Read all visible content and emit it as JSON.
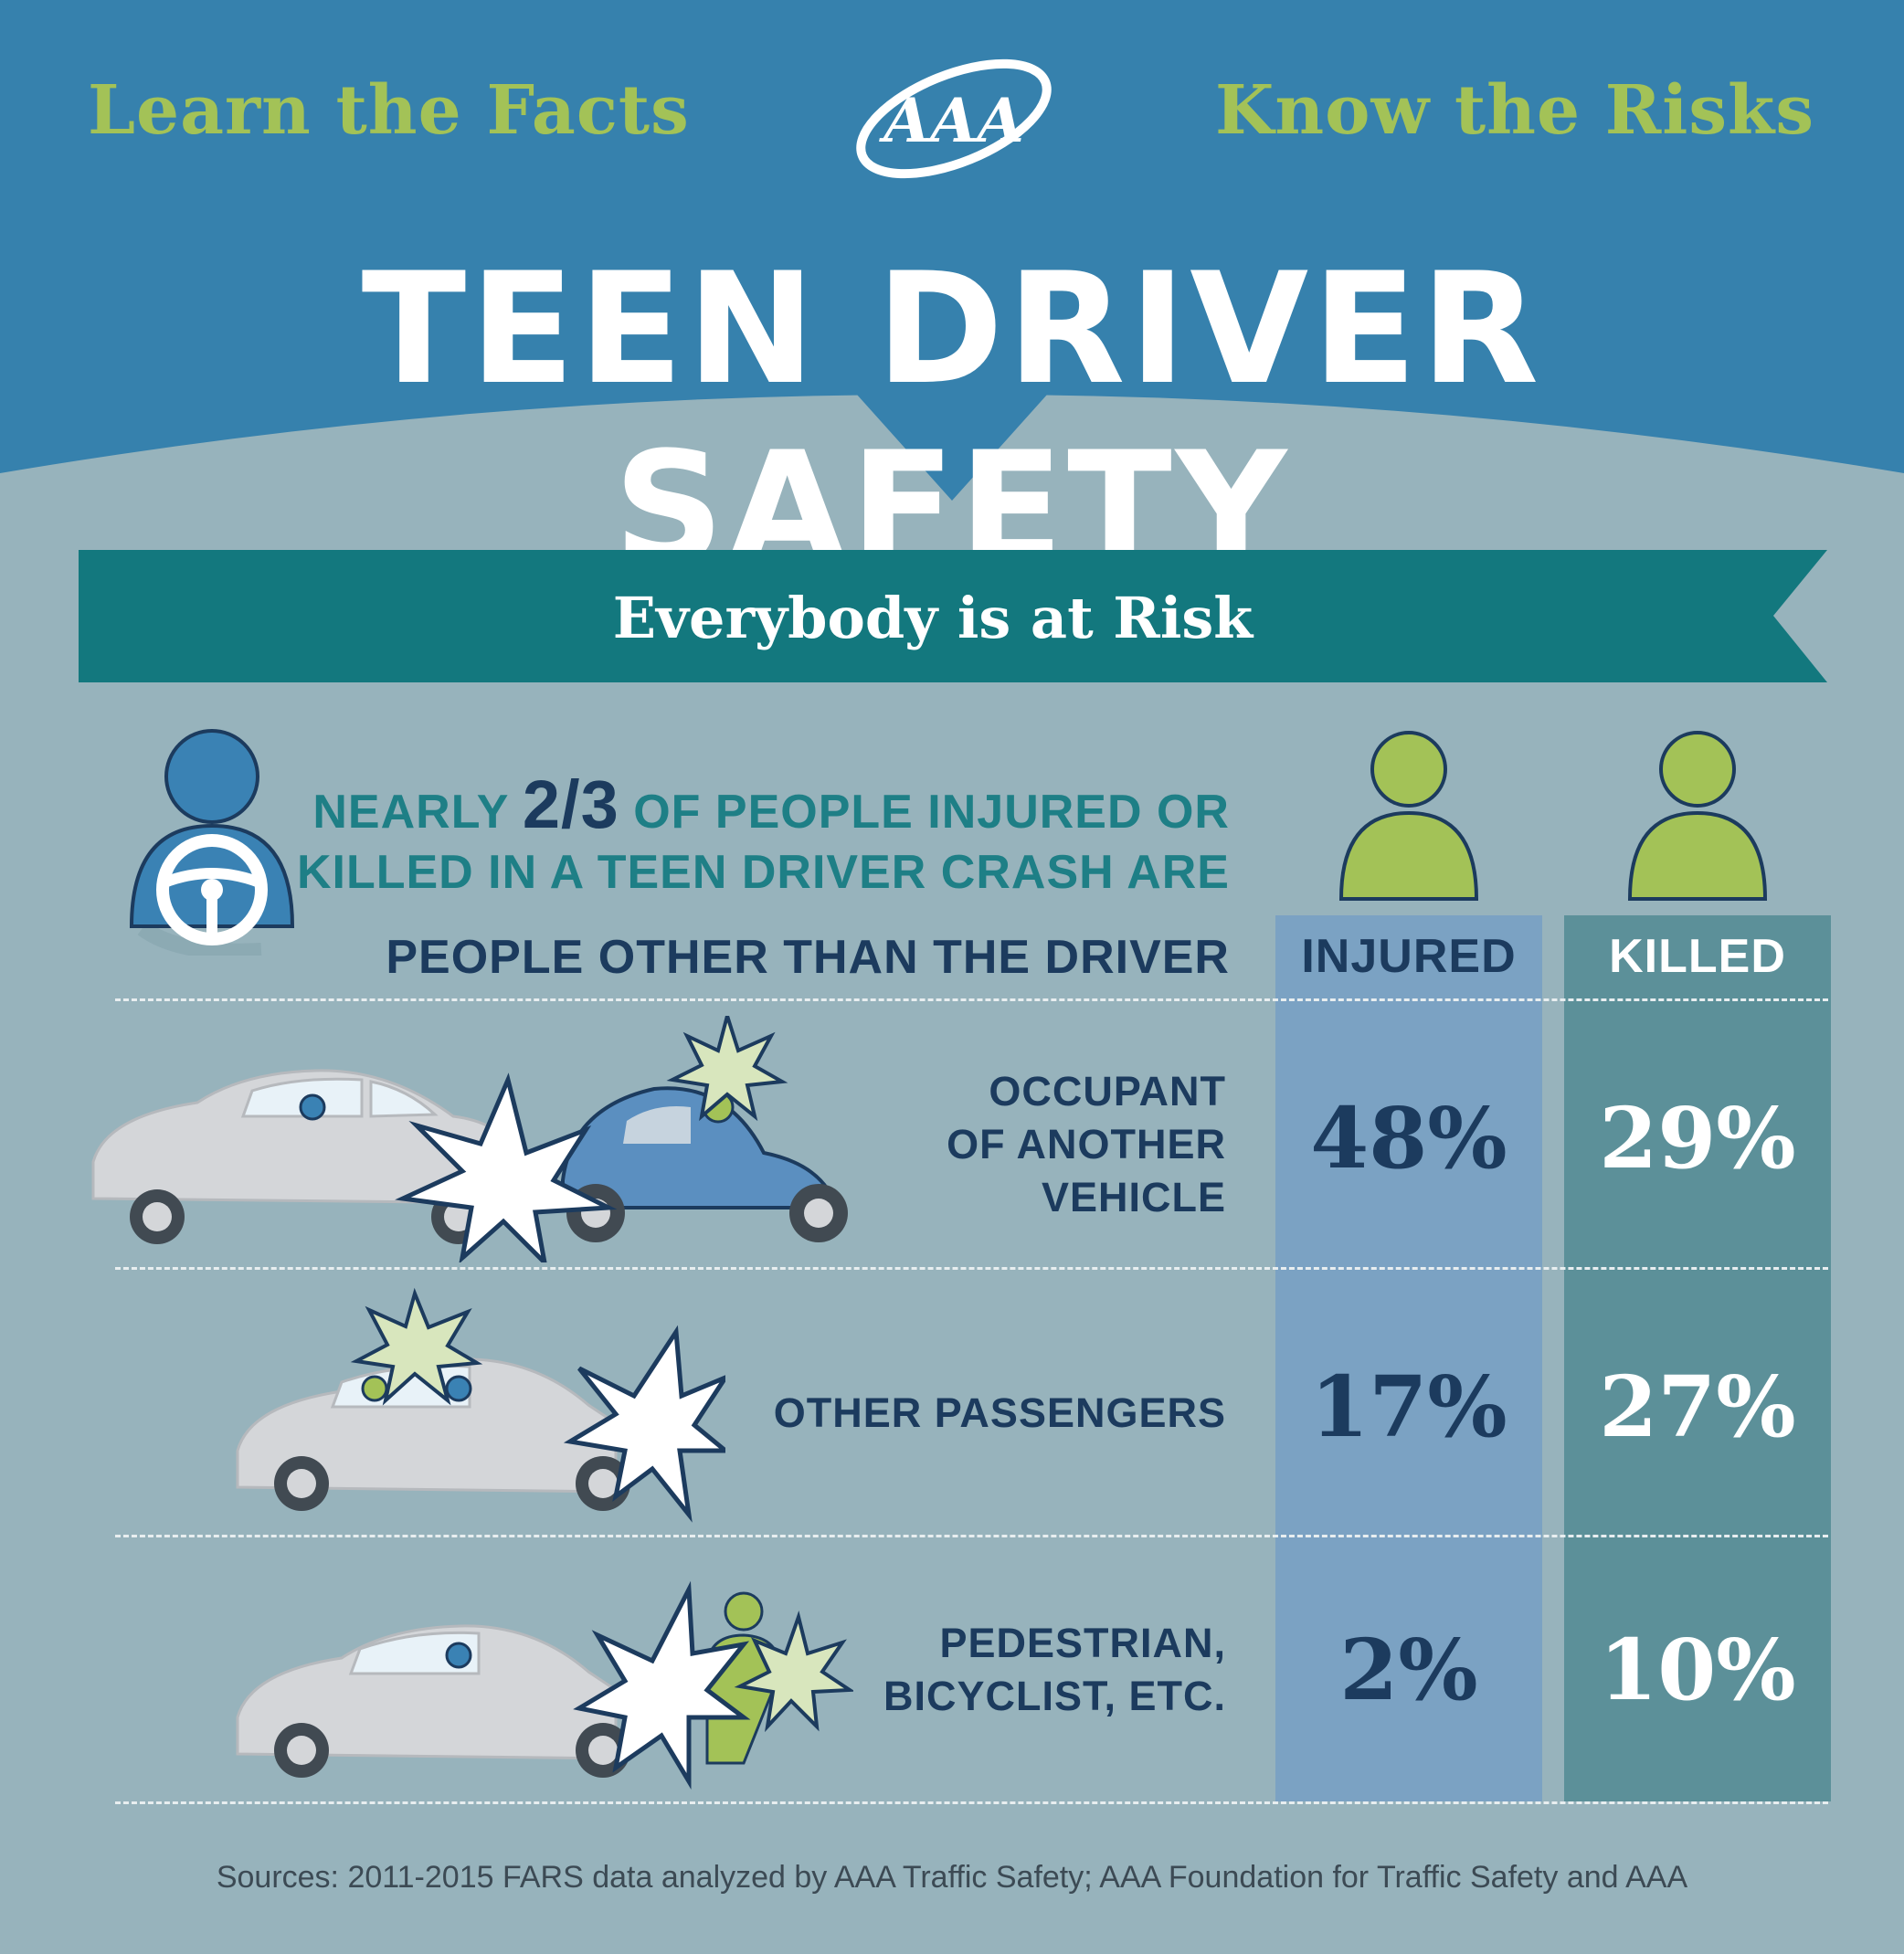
{
  "header": {
    "tagline_left": "Learn the Facts",
    "tagline_right": "Know the Risks",
    "logo_text": "AAA",
    "title": "TEEN DRIVER SAFETY"
  },
  "banner": {
    "text": "Everybody is at Risk"
  },
  "statement": {
    "line1_prefix": "NEARLY ",
    "fraction": "2/3",
    "line1_suffix": " OF PEOPLE INJURED OR",
    "line2": "KILLED IN A TEEN DRIVER CRASH ARE",
    "line3": "PEOPLE OTHER THAN THE DRIVER"
  },
  "columns": {
    "injured": "INJURED",
    "killed": "KILLED"
  },
  "rows": [
    {
      "label": [
        "OCCUPANT",
        "OF ANOTHER",
        "VEHICLE"
      ],
      "injured": "48%",
      "killed": "29%"
    },
    {
      "label": [
        "OTHER PASSENGERS"
      ],
      "injured": "17%",
      "killed": "27%"
    },
    {
      "label": [
        "PEDESTRIAN,",
        "BICYCLIST, ETC."
      ],
      "injured": "2%",
      "killed": "10%"
    }
  ],
  "sources": "Sources: 2011-2015 FARS data analyzed by AAA Traffic Safety; AAA Foundation for Traffic Safety and AAA",
  "colors": {
    "header_blue": "#3681ad",
    "background": "#97b3bc",
    "banner_teal": "#13787e",
    "accent_green": "#a3c257",
    "navy": "#1c3b5e",
    "injured_column": "#7ba2c3",
    "killed_column": "#5c9099"
  },
  "icons": [
    "aaa-logo",
    "driver-icon",
    "steering-wheel-icon",
    "person-icon",
    "car-crash-illustration",
    "impact-burst-icon"
  ]
}
